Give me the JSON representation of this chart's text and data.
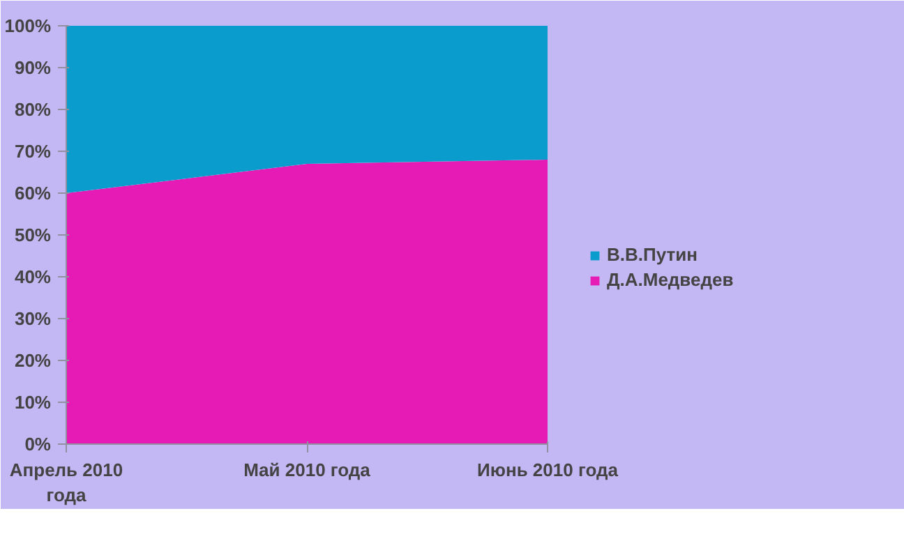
{
  "chart_data": {
    "type": "area",
    "stacked": true,
    "categories": [
      "Апрель 2010 года",
      "Май 2010 года",
      "Июнь 2010 года"
    ],
    "series": [
      {
        "name": "Д.А.Медведев",
        "color": "#e61ab4",
        "values": [
          60,
          67,
          68
        ]
      },
      {
        "name": "В.В.Путин",
        "color": "#0a9ccc",
        "values": [
          40,
          33,
          32
        ]
      }
    ],
    "ylim": [
      0,
      100
    ],
    "yticks": [
      {
        "value": 0,
        "label": "0%"
      },
      {
        "value": 10,
        "label": "10%"
      },
      {
        "value": 20,
        "label": "20%"
      },
      {
        "value": 30,
        "label": "30%"
      },
      {
        "value": 40,
        "label": "40%"
      },
      {
        "value": 50,
        "label": "50%"
      },
      {
        "value": 60,
        "label": "60%"
      },
      {
        "value": 70,
        "label": "70%"
      },
      {
        "value": 80,
        "label": "80%"
      },
      {
        "value": 90,
        "label": "90%"
      },
      {
        "value": 100,
        "label": "100%"
      }
    ],
    "grid": false,
    "legend": "right"
  }
}
